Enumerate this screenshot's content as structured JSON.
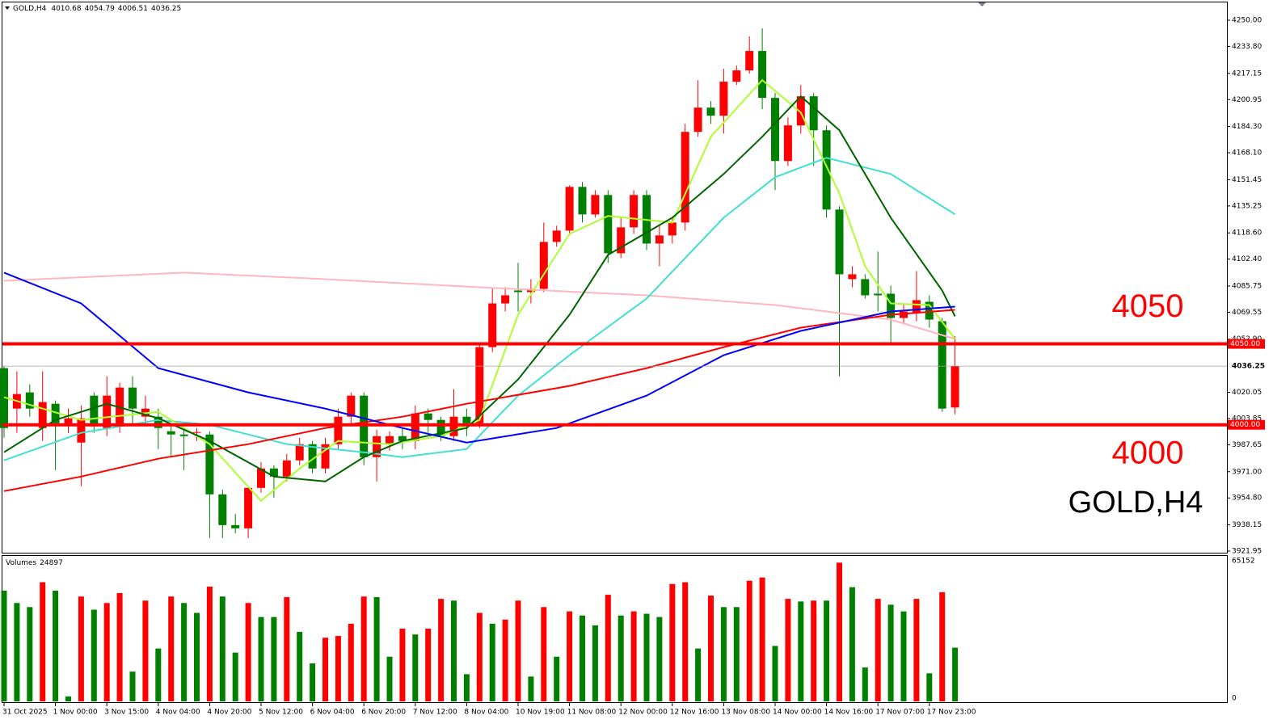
{
  "chart_data": {
    "type": "candlestick",
    "symbol": "GOLD,H4",
    "volume_title": "Volumes",
    "up_color": "#ff0000",
    "down_color": "#008000",
    "grid": false,
    "categories": [
      "31 Oct 2025",
      null,
      null,
      null,
      "1 Nov 00:00",
      null,
      null,
      null,
      "3 Nov 15:00",
      null,
      null,
      null,
      "4 Nov 04:00",
      null,
      null,
      null,
      "4 Nov 20:00",
      null,
      null,
      null,
      "5 Nov 12:00",
      null,
      null,
      null,
      "6 Nov 04:00",
      null,
      null,
      null,
      "6 Nov 20:00",
      null,
      null,
      null,
      "7 Nov 12:00",
      null,
      null,
      null,
      "8 Nov 04:00",
      null,
      null,
      null,
      "10 Nov 19:00",
      null,
      null,
      null,
      "11 Nov 08:00",
      null,
      null,
      null,
      "12 Nov 00:00",
      null,
      null,
      null,
      "12 Nov 16:00",
      null,
      null,
      null,
      "13 Nov 08:00",
      null,
      null,
      null,
      "14 Nov 00:00",
      null,
      null,
      null,
      "14 Nov 16:00",
      null,
      null,
      null,
      "17 Nov 07:00",
      null,
      null,
      null,
      "17 Nov 23:00",
      null,
      null
    ],
    "candles": {
      "open": [
        4035,
        4010,
        4020,
        3998,
        4013,
        4000,
        3989,
        4018,
        3998,
        3999,
        4023,
        4005,
        4005,
        3996,
        3994,
        3995,
        3994,
        3957,
        3938,
        3936,
        3961,
        3973,
        3968,
        3978,
        3988,
        3973,
        3988,
        4005,
        4018,
        3980,
        3988,
        3993,
        3990,
        4007,
        4003,
        3993,
        4005,
        4001,
        4048,
        4075,
        4083,
        4082,
        4084,
        4113,
        4120,
        4147,
        4130,
        4142,
        4106,
        4122,
        4142,
        4112,
        4117,
        4125,
        4181,
        4196,
        4191,
        4212,
        4219,
        4231,
        4202,
        4163,
        4185,
        4203,
        4182,
        4133,
        4090,
        4090,
        4081,
        4081,
        4066,
        4069,
        4076,
        4064,
        4010.68
      ],
      "high": [
        4036,
        4033,
        4025,
        4033,
        4015,
        4010,
        4012,
        4020,
        4030,
        4026,
        4030,
        4018,
        4010,
        4000,
        3997,
        3998,
        3996,
        3960,
        3945,
        3962,
        3977,
        3975,
        3982,
        3992,
        3990,
        3992,
        4010,
        4020,
        4020,
        3997,
        3996,
        3998,
        4012,
        4010,
        4005,
        4022,
        4010,
        4050,
        4085,
        4085,
        4100,
        4090,
        4125,
        4123,
        4148,
        4150,
        4145,
        4145,
        4128,
        4145,
        4145,
        4123,
        4128,
        4186,
        4213,
        4200,
        4220,
        4222,
        4240,
        4245,
        4205,
        4190,
        4210,
        4205,
        4185,
        4135,
        4098,
        4093,
        4107,
        4086,
        4075,
        4095,
        4080,
        4066,
        4054.79
      ],
      "low": [
        3992,
        3995,
        4005,
        3990,
        3972,
        3995,
        3962,
        3995,
        3993,
        3995,
        4000,
        4000,
        3985,
        3980,
        3972,
        3990,
        3930,
        3930,
        3933,
        3930,
        3958,
        3955,
        3965,
        3975,
        3970,
        3970,
        3985,
        4000,
        3975,
        3965,
        3984,
        3985,
        3985,
        3995,
        3990,
        3990,
        3993,
        3998,
        4045,
        4070,
        4070,
        4075,
        4082,
        4110,
        4117,
        4125,
        4128,
        4100,
        4103,
        4118,
        4108,
        4098,
        4112,
        4120,
        4178,
        4186,
        4180,
        4210,
        4217,
        4195,
        4145,
        4160,
        4180,
        4160,
        4128,
        4030,
        4085,
        4078,
        4070,
        4050,
        4062,
        4064,
        4060,
        4008,
        4006.51
      ],
      "close": [
        3998,
        4019,
        4010,
        4014,
        4001,
        4004,
        4004,
        3999,
        4018,
        4023,
        4010,
        4010,
        3998,
        3994,
        3993,
        3995.5,
        3957,
        3938,
        3936,
        3961,
        3973,
        3968,
        3978,
        3988,
        3973,
        3988,
        4005,
        4018,
        3980,
        3993,
        3993,
        3990,
        4007,
        4003,
        3993,
        4005,
        4001,
        4048,
        4075,
        4080,
        4082,
        4084,
        4113,
        4120,
        4147,
        4130,
        4142,
        4106,
        4122,
        4142,
        4112,
        4117,
        4125,
        4181,
        4196,
        4191,
        4212,
        4219,
        4231,
        4202,
        4163,
        4185,
        4203,
        4182,
        4133,
        4093,
        4093,
        4080,
        4080,
        4066,
        4070,
        4077,
        4065,
        4010,
        4036.25
      ]
    },
    "lines": [
      {
        "color": "#ffb6c1",
        "x": [
          0,
          14,
          25,
          37,
          50,
          60,
          69,
          74
        ],
        "values": [
          4089,
          4094,
          4090,
          4085,
          4080,
          4074,
          4065,
          4053
        ]
      },
      {
        "color": "#40e0d0",
        "x": [
          0,
          6,
          12,
          16,
          22,
          28,
          31,
          36,
          40,
          44,
          50,
          56,
          60,
          64,
          69,
          74
        ],
        "values": [
          3978,
          3995,
          4003,
          4000,
          3988,
          3983,
          3980,
          3985,
          4018,
          4043,
          4078,
          4128,
          4153,
          4165,
          4155,
          4130
        ]
      },
      {
        "color": "#adff2f",
        "x": [
          0,
          6,
          12,
          16,
          20,
          23,
          26,
          30,
          34,
          37,
          40,
          44,
          47,
          52,
          55,
          59,
          62,
          65,
          67,
          69,
          72,
          74
        ],
        "values": [
          4017,
          4003,
          4008,
          3988,
          3953,
          3973,
          3990,
          3988,
          3993,
          4003,
          4068,
          4118,
          4129,
          4125,
          4178,
          4213,
          4193,
          4143,
          4098,
          4075,
          4074,
          4053
        ]
      },
      {
        "color": "#006400",
        "x": [
          0,
          4,
          8,
          12,
          16,
          21,
          25,
          28,
          31,
          36,
          40,
          44,
          47,
          52,
          56,
          59,
          62,
          65,
          69,
          73,
          74
        ],
        "values": [
          3983,
          4003,
          4013,
          4004,
          3990,
          3968,
          3965,
          3980,
          3990,
          3998,
          4028,
          4068,
          4105,
          4128,
          4155,
          4178,
          4203,
          4182,
          4128,
          4083,
          4067
        ]
      },
      {
        "color": "#ff0000",
        "x": [
          0,
          6,
          12,
          19,
          25,
          31,
          36,
          44,
          50,
          56,
          62,
          69,
          74
        ],
        "values": [
          3959,
          3968,
          3979,
          3988,
          3998,
          4005,
          4013,
          4024,
          4035,
          4048,
          4060,
          4068,
          4071
        ]
      },
      {
        "color": "#0000ff",
        "x": [
          0,
          6,
          12,
          19,
          25,
          31,
          36,
          43,
          50,
          56,
          62,
          69,
          74
        ],
        "values": [
          4094,
          4075,
          4035,
          4020,
          4010,
          3998,
          3989,
          3998,
          4018,
          4043,
          4058,
          4070,
          4073
        ]
      }
    ],
    "hlines": [
      {
        "value": 4050,
        "label": "4050.00",
        "color": "#ff0000"
      },
      {
        "value": 4000,
        "label": "4000.00",
        "color": "#ff0000"
      }
    ],
    "price_line": 4036.25,
    "ylim": [
      3920.45,
      4261.0
    ],
    "yticks": [
      {
        "value": 4250,
        "label": "4250.00"
      },
      {
        "value": 4233.8,
        "label": "4233.80"
      },
      4217.15,
      4200.95,
      {
        "value": 4184.3,
        "label": "4184.30"
      },
      {
        "value": 4168.1,
        "label": "4168.10"
      },
      4151.45,
      4135.25,
      {
        "value": 4118.6,
        "label": "4118.60"
      },
      {
        "value": 4102.4,
        "label": "4102.40"
      },
      4085.75,
      4069.55,
      {
        "value": 4052.9,
        "label": "4052.90"
      },
      4020.05,
      4003.85,
      3987.65,
      {
        "value": 3971,
        "label": "3971.00"
      },
      {
        "value": 3954.8,
        "label": "3954.80"
      },
      3938.15,
      3921.95
    ],
    "volume": {
      "values": [
        51300,
        45600,
        43700,
        55200,
        51300,
        2300,
        48600,
        42500,
        45600,
        50200,
        13800,
        46700,
        24500,
        48600,
        45600,
        41000,
        53200,
        48600,
        22600,
        45600,
        39100,
        39100,
        48300,
        32200,
        17600,
        29500,
        30300,
        36000,
        48600,
        48300,
        20700,
        33700,
        31000,
        33700,
        47500,
        46700,
        12600,
        41000,
        36000,
        37900,
        46700,
        11500,
        43700,
        20700,
        41700,
        39800,
        35200,
        49400,
        39800,
        41700,
        40600,
        39100,
        54400,
        55200,
        24500,
        49000,
        43700,
        43700,
        55900,
        57400,
        25700,
        47500,
        46300,
        46700,
        46700,
        64300,
        52900,
        15700,
        47500,
        44800,
        41700,
        47500,
        13000,
        50600,
        24897
      ],
      "ylim": [
        0,
        67400
      ],
      "yticks": [
        0,
        65152
      ]
    }
  }
}
